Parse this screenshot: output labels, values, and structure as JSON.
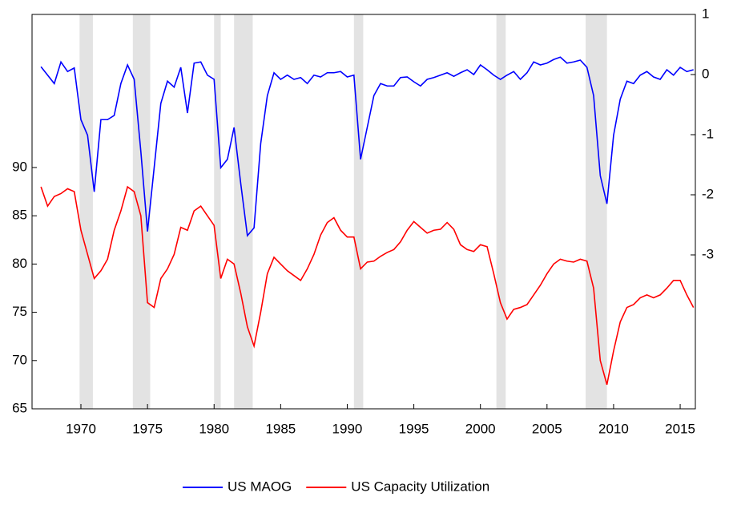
{
  "chart_data": {
    "type": "line",
    "x": [
      1967,
      1967.5,
      1968,
      1968.5,
      1969,
      1969.5,
      1970,
      1970.5,
      1971,
      1971.5,
      1972,
      1972.5,
      1973,
      1973.5,
      1974,
      1974.5,
      1975,
      1975.5,
      1976,
      1976.5,
      1977,
      1977.5,
      1978,
      1978.5,
      1979,
      1979.5,
      1980,
      1980.5,
      1981,
      1981.5,
      1982,
      1982.5,
      1983,
      1983.5,
      1984,
      1984.5,
      1985,
      1985.5,
      1986,
      1986.5,
      1987,
      1987.5,
      1988,
      1988.5,
      1989,
      1989.5,
      1990,
      1990.5,
      1991,
      1991.5,
      1992,
      1992.5,
      1993,
      1993.5,
      1994,
      1994.5,
      1995,
      1995.5,
      1996,
      1996.5,
      1997,
      1997.5,
      1998,
      1998.5,
      1999,
      1999.5,
      2000,
      2000.5,
      2001,
      2001.5,
      2002,
      2002.5,
      2003,
      2003.5,
      2004,
      2004.5,
      2005,
      2005.5,
      2006,
      2006.5,
      2007,
      2007.5,
      2008,
      2008.5,
      2009,
      2009.5,
      2010,
      2010.5,
      2011,
      2011.5,
      2012,
      2012.5,
      2013,
      2013.5,
      2014,
      2014.5,
      2015,
      2015.5,
      2016
    ],
    "series": [
      {
        "name": "US MAOG",
        "color": "#0000ff",
        "axis": "y2",
        "values": [
          0.13,
          -0.01,
          -0.15,
          0.21,
          0.05,
          0.11,
          -0.75,
          -1.01,
          -1.95,
          -0.75,
          -0.75,
          -0.68,
          -0.15,
          0.16,
          -0.08,
          -1.28,
          -2.61,
          -1.55,
          -0.48,
          -0.11,
          -0.21,
          0.12,
          -0.64,
          0.19,
          0.21,
          -0.01,
          -0.08,
          -1.55,
          -1.41,
          -0.88,
          -1.81,
          -2.68,
          -2.55,
          -1.15,
          -0.35,
          0.03,
          -0.08,
          -0.01,
          -0.08,
          -0.05,
          -0.15,
          -0.01,
          -0.04,
          0.03,
          0.03,
          0.05,
          -0.04,
          -0.01,
          -1.41,
          -0.88,
          -0.35,
          -0.15,
          -0.19,
          -0.19,
          -0.05,
          -0.04,
          -0.12,
          -0.19,
          -0.08,
          -0.05,
          -0.01,
          0.03,
          -0.03,
          0.03,
          0.08,
          0,
          0.16,
          0.08,
          -0.01,
          -0.08,
          -0.01,
          0.05,
          -0.08,
          0.03,
          0.21,
          0.16,
          0.19,
          0.25,
          0.29,
          0.19,
          0.21,
          0.24,
          0.12,
          -0.35,
          -1.68,
          -2.15,
          -1.01,
          -0.41,
          -0.11,
          -0.15,
          -0.01,
          0.05,
          -0.04,
          -0.08,
          0.08,
          -0.01,
          0.12,
          0.05,
          0.08
        ]
      },
      {
        "name": "US Capacity Utilization",
        "color": "#ff0000",
        "axis": "y",
        "values": [
          88,
          86,
          87,
          87.3,
          87.8,
          87.5,
          83.5,
          81,
          78.5,
          79.3,
          80.5,
          83.5,
          85.5,
          88,
          87.5,
          85,
          76,
          75.5,
          78.5,
          79.5,
          81,
          83.8,
          83.5,
          85.5,
          86,
          85,
          84,
          78.5,
          80.5,
          80,
          77,
          73.5,
          71.5,
          75,
          79,
          80.7,
          80,
          79.3,
          78.8,
          78.3,
          79.5,
          81,
          83,
          84.3,
          84.8,
          83.5,
          82.8,
          82.8,
          79.5,
          80.2,
          80.3,
          80.8,
          81.2,
          81.5,
          82.3,
          83.5,
          84.4,
          83.8,
          83.2,
          83.5,
          83.6,
          84.3,
          83.6,
          82,
          81.5,
          81.3,
          82,
          81.8,
          79,
          76,
          74.3,
          75.3,
          75.5,
          75.8,
          76.8,
          77.8,
          79,
          80,
          80.5,
          80.3,
          80.2,
          80.5,
          80.3,
          77.5,
          70,
          67.5,
          71,
          74,
          75.5,
          75.8,
          76.5,
          76.8,
          76.5,
          76.8,
          77.5,
          78.3,
          78.3,
          76.8,
          75.5
        ]
      }
    ],
    "recessions": [
      [
        1969.9,
        1970.9
      ],
      [
        1973.9,
        1975.2
      ],
      [
        1980,
        1980.5
      ],
      [
        1981.5,
        1982.9
      ],
      [
        1990.5,
        1991.2
      ],
      [
        2001.2,
        2001.9
      ],
      [
        2007.9,
        2009.5
      ]
    ],
    "xlim": [
      1966.33,
      2016.14
    ],
    "xticks": [
      1970,
      1975,
      1980,
      1985,
      1990,
      1995,
      2000,
      2005,
      2010,
      2015
    ],
    "ylim": [
      65,
      105.86
    ],
    "yticks": [
      65,
      70,
      75,
      80,
      85,
      90
    ],
    "y2lim": [
      -5.56,
      1
    ],
    "y2ticks": [
      -3,
      -2,
      -1,
      0,
      1
    ],
    "legend": "bottom"
  }
}
